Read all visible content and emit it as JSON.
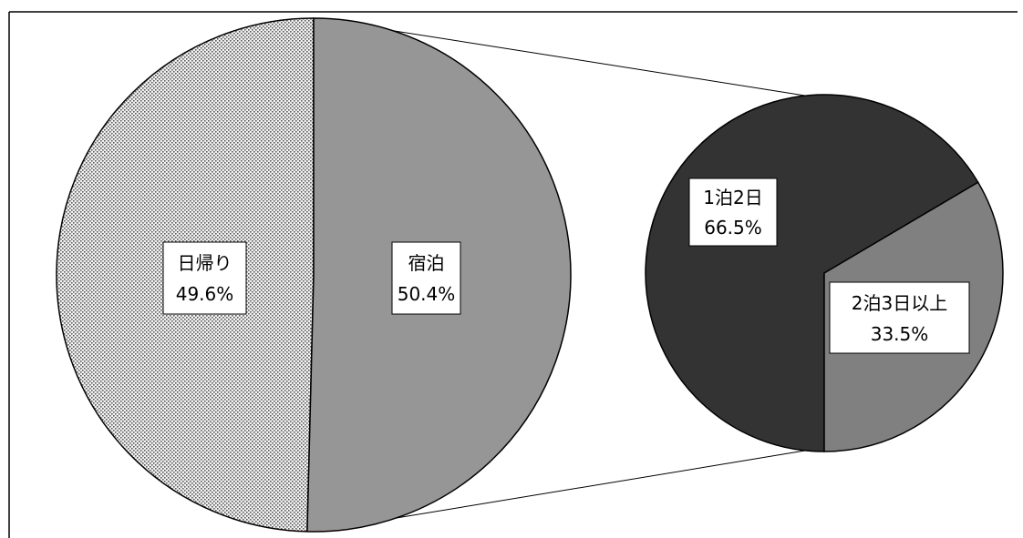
{
  "chart_data": {
    "type": "pie",
    "variant": "pie-of-pie",
    "main_pie": {
      "slices": [
        {
          "label": "日帰り",
          "value": 49.6,
          "value_label": "49.6%",
          "fill": "#e2e2e2",
          "pattern": "dotted"
        },
        {
          "label": "宿泊",
          "value": 50.4,
          "value_label": "50.4%",
          "fill": "#969696",
          "pattern": "solid"
        }
      ]
    },
    "secondary_pie": {
      "expands": "宿泊",
      "slices": [
        {
          "label": "1泊2日",
          "value": 66.5,
          "value_label": "66.5%",
          "fill": "#333333"
        },
        {
          "label": "2泊3日以上",
          "value": 33.5,
          "value_label": "33.5%",
          "fill": "#808080"
        }
      ]
    },
    "legend": "none",
    "grid": false
  }
}
